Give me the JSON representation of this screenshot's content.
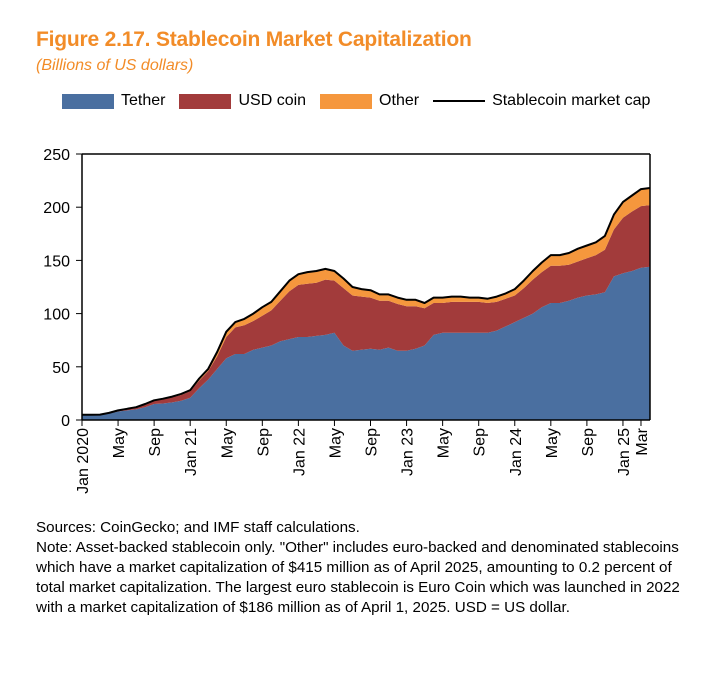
{
  "title": "Figure 2.17.  Stablecoin Market Capitalization",
  "subtitle": "(Billions of US dollars)",
  "legend": {
    "tether": "Tether",
    "usdc": "USD coin",
    "other": "Other",
    "total": "Stablecoin market cap"
  },
  "sources": "Sources: CoinGecko; and IMF staff calculations.",
  "note": "Note: Asset-backed stablecoin only. \"Other\" includes euro-backed and denominated stablecoins which have a market capitalization of $415 million as of April 2025, amounting to 0.2 percent of total market capitalization. The largest euro stablecoin is Euro Coin which was launched in 2022 with a market capitalization of $186 million as of April 1, 2025. USD = US dollar.",
  "colors": {
    "tether": "#4a6fa0",
    "usdc": "#a23b3b",
    "other": "#f5973d",
    "total": "#000000"
  },
  "chart_data": {
    "type": "area",
    "stacked": true,
    "ylim": [
      0,
      250
    ],
    "yticks": [
      0,
      50,
      100,
      150,
      200,
      250
    ],
    "xlim": [
      0,
      63
    ],
    "xticks": [
      {
        "pos": 0,
        "label": "Jan 2020"
      },
      {
        "pos": 4,
        "label": "May"
      },
      {
        "pos": 8,
        "label": "Sep"
      },
      {
        "pos": 12,
        "label": "Jan 21"
      },
      {
        "pos": 16,
        "label": "May"
      },
      {
        "pos": 20,
        "label": "Sep"
      },
      {
        "pos": 24,
        "label": "Jan 22"
      },
      {
        "pos": 28,
        "label": "May"
      },
      {
        "pos": 32,
        "label": "Sep"
      },
      {
        "pos": 36,
        "label": "Jan 23"
      },
      {
        "pos": 40,
        "label": "May"
      },
      {
        "pos": 44,
        "label": "Sep"
      },
      {
        "pos": 48,
        "label": "Jan 24"
      },
      {
        "pos": 52,
        "label": "May"
      },
      {
        "pos": 56,
        "label": "Sep"
      },
      {
        "pos": 60,
        "label": "Jan 25"
      },
      {
        "pos": 62,
        "label": "Mar"
      }
    ],
    "x": [
      0,
      1,
      2,
      3,
      4,
      5,
      6,
      7,
      8,
      9,
      10,
      11,
      12,
      13,
      14,
      15,
      16,
      17,
      18,
      19,
      20,
      21,
      22,
      23,
      24,
      25,
      26,
      27,
      28,
      29,
      30,
      31,
      32,
      33,
      34,
      35,
      36,
      37,
      38,
      39,
      40,
      41,
      42,
      43,
      44,
      45,
      46,
      47,
      48,
      49,
      50,
      51,
      52,
      53,
      54,
      55,
      56,
      57,
      58,
      59,
      60,
      61,
      62,
      63
    ],
    "series": [
      {
        "name": "Tether",
        "values": [
          4.6,
          4.6,
          4.6,
          6,
          8,
          9,
          10,
          12,
          15,
          15.5,
          16.5,
          18,
          21,
          30,
          38,
          48,
          58,
          62,
          62,
          66,
          68,
          70,
          74,
          76,
          78,
          78,
          79,
          80,
          82,
          70,
          65,
          66,
          67,
          66,
          68,
          65,
          65,
          67,
          70,
          80,
          82,
          82,
          82,
          82,
          82,
          82,
          84,
          88,
          92,
          96,
          100,
          106,
          110,
          110,
          112,
          115,
          117,
          118,
          120,
          135,
          138,
          140,
          143,
          144
        ]
      },
      {
        "name": "USD coin",
        "values": [
          0.4,
          0.4,
          0.5,
          0.7,
          1,
          1.5,
          2,
          3,
          3.5,
          4,
          5,
          5.5,
          6,
          7,
          8,
          12,
          20,
          25,
          27,
          27,
          30,
          33,
          38,
          45,
          49,
          50,
          50,
          52,
          49,
          54,
          52,
          50,
          48,
          46,
          44,
          44,
          42,
          40,
          35,
          30,
          28,
          29,
          29,
          29,
          29,
          28,
          27,
          26,
          25,
          28,
          32,
          33,
          35,
          35,
          34,
          34,
          35,
          37,
          40,
          44,
          52,
          56,
          58,
          58
        ]
      },
      {
        "name": "Other",
        "values": [
          0,
          0,
          0,
          0,
          0,
          0,
          0,
          0,
          0,
          0.5,
          0.5,
          1,
          1,
          2,
          2,
          4,
          5,
          5,
          6,
          7,
          8,
          8,
          9,
          10,
          10,
          11,
          11,
          10,
          9,
          9,
          8,
          7,
          7,
          6,
          6,
          6,
          6,
          6,
          5,
          5,
          5,
          5,
          5,
          4,
          4,
          4,
          5,
          5,
          6,
          7,
          8,
          9,
          10,
          10,
          11,
          12,
          12,
          12,
          13,
          14,
          15,
          15,
          16,
          16
        ]
      }
    ],
    "total_name": "Stablecoin market cap",
    "grid": false,
    "legend_position": "top"
  }
}
